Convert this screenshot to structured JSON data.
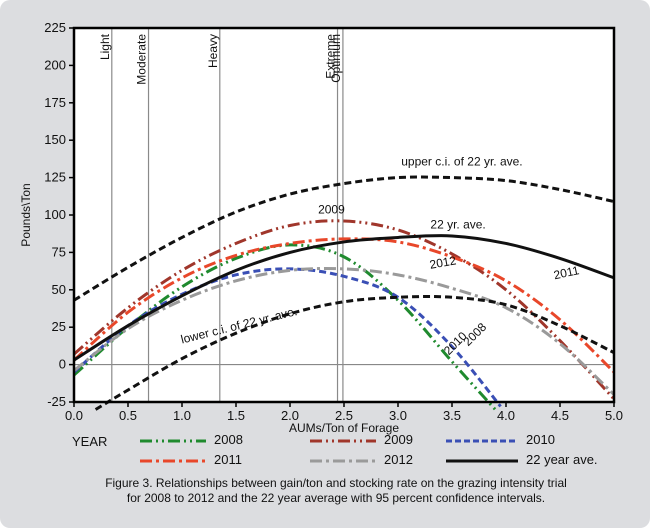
{
  "chart_data": {
    "type": "line",
    "title": "",
    "xlabel": "AUMs/Ton of Forage",
    "ylabel": "Pounds\\Ton",
    "xlim": [
      0.0,
      5.0
    ],
    "ylim": [
      -25,
      225
    ],
    "x_ticks": [
      "0.0",
      "0.5",
      "1.0",
      "1.5",
      "2.0",
      "2.5",
      "3.0",
      "3.5",
      "4.0",
      "4.5",
      "5.0"
    ],
    "y_ticks": [
      "-25",
      "0",
      "25",
      "50",
      "75",
      "100",
      "125",
      "150",
      "175",
      "200",
      "225"
    ],
    "grid": false,
    "reference_lines": [
      {
        "label": "Light",
        "x": 0.35
      },
      {
        "label": "Moderate",
        "x": 0.69
      },
      {
        "label": "Heavy",
        "x": 1.35
      },
      {
        "label": "Extreme",
        "x": 2.44
      },
      {
        "label": "Optimum",
        "x": 2.49
      }
    ],
    "series": [
      {
        "name": "2008",
        "color": "#1f8a2e",
        "dash": "dash-dot-dot",
        "x": [
          0,
          0.5,
          1.0,
          1.5,
          2.0,
          2.5,
          3.0,
          3.5,
          3.9
        ],
        "y": [
          -7,
          25,
          52,
          71,
          80,
          72,
          43,
          2,
          -30
        ]
      },
      {
        "name": "2009",
        "color": "#a0362b",
        "dash": "dash-dot-dot",
        "x": [
          0,
          0.5,
          1.0,
          1.5,
          2.0,
          2.5,
          3.0,
          3.5,
          4.0,
          4.5,
          5.0
        ],
        "y": [
          7,
          38,
          63,
          81,
          93,
          96,
          90,
          74,
          50,
          16,
          -23
        ]
      },
      {
        "name": "2010",
        "color": "#3a4fb5",
        "dash": "dash",
        "x": [
          0,
          0.5,
          1.0,
          1.5,
          2.0,
          2.5,
          3.0,
          3.5,
          3.95
        ],
        "y": [
          -5,
          26,
          47,
          60,
          64,
          59,
          45,
          12,
          -28
        ]
      },
      {
        "name": "2011",
        "color": "#e8472a",
        "dash": "dash-dot",
        "x": [
          0,
          0.5,
          1.0,
          1.5,
          2.0,
          2.5,
          3.0,
          3.5,
          4.0,
          4.5,
          5.0
        ],
        "y": [
          3,
          35,
          58,
          73,
          81,
          84,
          82,
          72,
          56,
          30,
          -5
        ]
      },
      {
        "name": "2012",
        "color": "#9a9a9a",
        "dash": "dash-dot",
        "x": [
          0,
          0.5,
          1.0,
          1.5,
          2.0,
          2.5,
          3.0,
          3.5,
          4.0,
          4.5,
          5.0
        ],
        "y": [
          -4,
          24,
          43,
          56,
          63,
          64,
          60,
          51,
          38,
          14,
          -20
        ]
      },
      {
        "name": "22 year ave.",
        "color": "#111111",
        "dash": "solid",
        "x": [
          0,
          0.5,
          1.0,
          1.5,
          2.0,
          2.5,
          3.0,
          3.5,
          4.0,
          4.5,
          5.0
        ],
        "y": [
          3,
          26,
          46,
          63,
          75,
          82,
          85,
          86,
          81,
          71,
          58
        ]
      },
      {
        "name": "upper c.i. of 22 yr. ave.",
        "color": "#111111",
        "dash": "dash",
        "x": [
          0,
          0.5,
          1.0,
          1.5,
          2.0,
          2.5,
          3.0,
          3.5,
          4.0,
          4.5,
          5.0
        ],
        "y": [
          43,
          65,
          85,
          102,
          114,
          121,
          125,
          125,
          123,
          117,
          109
        ]
      },
      {
        "name": "lower c.i. of 22 yr. ave.",
        "color": "#111111",
        "dash": "dash",
        "x": [
          0.2,
          0.5,
          1.0,
          1.5,
          2.0,
          2.5,
          3.0,
          3.5,
          4.0,
          4.5,
          5.0
        ],
        "y": [
          -30,
          -17,
          4,
          21,
          34,
          42,
          45,
          45,
          40,
          26,
          8
        ]
      }
    ],
    "annotations": [
      {
        "text": "upper c.i. of 22 yr. ave.",
        "x": 3.03,
        "y": 133,
        "color": "#111111",
        "rotate": 0
      },
      {
        "text": "22 yr. ave.",
        "x": 3.3,
        "y": 91,
        "color": "#111111",
        "rotate": 0
      },
      {
        "text": "2009",
        "x": 2.26,
        "y": 101,
        "color": "#a0362b",
        "rotate": 0
      },
      {
        "text": "2012",
        "x": 3.3,
        "y": 64,
        "color": "#9a9a9a",
        "rotate": -10
      },
      {
        "text": "2011",
        "x": 4.45,
        "y": 57,
        "color": "#e8472a",
        "rotate": -12
      },
      {
        "text": "lower c.i. of 22 yr. ave.",
        "x": 1.0,
        "y": 14,
        "color": "#111111",
        "rotate": -14
      },
      {
        "text": "2008",
        "x": 3.65,
        "y": 12,
        "color": "#1f8a2e",
        "rotate": -45
      },
      {
        "text": "2010",
        "x": 3.47,
        "y": 6,
        "color": "#3a4fb5",
        "rotate": -45
      }
    ]
  },
  "legend": {
    "heading": "YEAR",
    "items": [
      "2008",
      "2009",
      "2010",
      "2011",
      "2012",
      "22 year ave."
    ]
  },
  "caption": {
    "line1": "Figure 3. Relationships between gain/ton and stocking rate on the grazing intensity trial",
    "line2": "for 2008 to 2012 and the 22 year average with 95 percent confidence intervals."
  }
}
